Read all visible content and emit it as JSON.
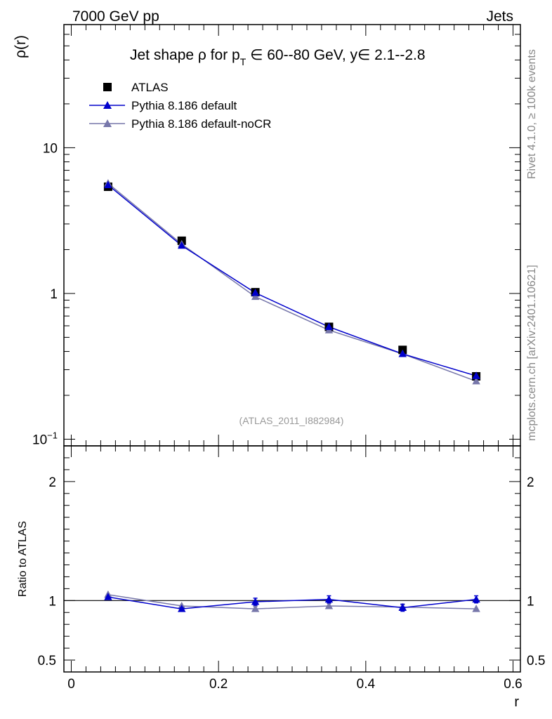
{
  "header": {
    "left": "7000 GeV pp",
    "right": "Jets"
  },
  "side_labels": {
    "rivet": "Rivet 4.1.0, ≥ 100k events",
    "mcplots": "mcplots.cern.ch [arXiv:2401.10621]"
  },
  "colors": {
    "data": "#000000",
    "default": "#0000cc",
    "nocr": "#7777aa",
    "watermark": "#999999"
  },
  "chart_data": [
    {
      "type": "scatter",
      "panel": "main",
      "title": "Jet shape ρ for p_T ∈ 60--80 GeV, y ∈ 2.1--2.8",
      "title_parts": {
        "prefix": "Jet shape ρ for p",
        "sub": "T",
        "suffix": " ∈ 60--80 GeV, y∈ 2.1--2.8"
      },
      "ylabel": "ρ(r)",
      "yscale": "log",
      "ylim": [
        0.09,
        70
      ],
      "xlim": [
        -0.01,
        0.61
      ],
      "yticks": [
        {
          "value": 0.1,
          "base": "10",
          "exp": "−1"
        },
        {
          "value": 1,
          "base": "1",
          "exp": ""
        },
        {
          "value": 10,
          "base": "10",
          "exp": ""
        }
      ],
      "watermark": "(ATLAS_2011_I882984)",
      "x": [
        0.05,
        0.15,
        0.25,
        0.35,
        0.45,
        0.55
      ],
      "series": [
        {
          "name": "ATLAS",
          "marker": "square",
          "values": [
            5.4,
            2.3,
            1.02,
            0.59,
            0.41,
            0.27
          ]
        },
        {
          "name": "Pythia 8.186 default",
          "marker": "triangle",
          "values": [
            5.55,
            2.13,
            1.01,
            0.59,
            0.385,
            0.272
          ]
        },
        {
          "name": "Pythia 8.186 default-noCR",
          "marker": "triangle",
          "values": [
            5.7,
            2.18,
            0.95,
            0.56,
            0.385,
            0.25
          ]
        }
      ],
      "legend": [
        "ATLAS",
        "Pythia 8.186 default",
        "Pythia 8.186 default-noCR"
      ]
    },
    {
      "type": "scatter",
      "panel": "ratio",
      "ylabel": "Ratio to ATLAS",
      "xlabel": "r",
      "ylim": [
        0.4,
        2.3
      ],
      "yticks": [
        0.5,
        1,
        2
      ],
      "xticks": [
        0,
        0.2,
        0.4,
        0.6
      ],
      "xtick_labels": [
        "0",
        "0.2",
        "0.4",
        "0.6"
      ],
      "ytick_labels": [
        "0.5",
        "1",
        "2"
      ],
      "x": [
        0.05,
        0.15,
        0.25,
        0.35,
        0.45,
        0.55
      ],
      "series": [
        {
          "name": "Pythia 8.186 default",
          "values": [
            1.03,
            0.93,
            0.99,
            1.01,
            0.94,
            1.01
          ],
          "errors": [
            0.0,
            0.01,
            0.03,
            0.03,
            0.03,
            0.03
          ]
        },
        {
          "name": "Pythia 8.186 default-noCR",
          "values": [
            1.05,
            0.955,
            0.93,
            0.955,
            0.945,
            0.93
          ],
          "errors": [
            0.0,
            0.0,
            0.02,
            0.02,
            0.02,
            0.0
          ]
        }
      ]
    }
  ]
}
